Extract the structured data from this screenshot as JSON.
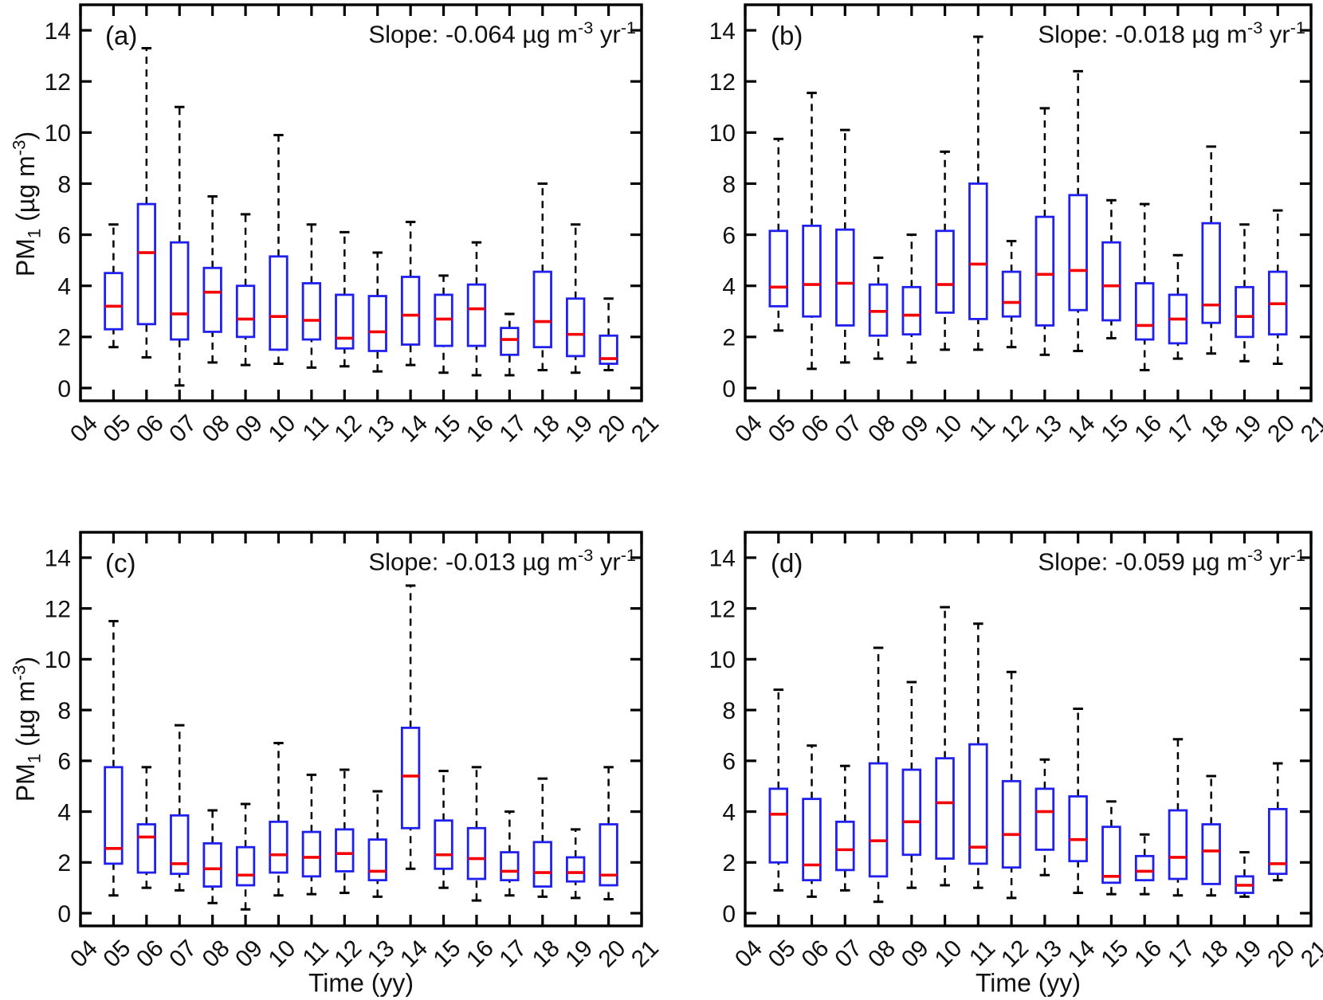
{
  "figure": {
    "background": "#ffffff"
  },
  "colors": {
    "box_edge": "#2020ee",
    "median": "#f50000",
    "whisker": "#000000",
    "axis": "#000000",
    "text": "#111111"
  },
  "axis": {
    "xlabel": "Time (yy)",
    "ylabel_parts": {
      "p0": "PM",
      "p1": "1",
      "p2": " (µg m",
      "p3": "-3",
      "p4": ")"
    },
    "xlim": [
      4,
      21
    ],
    "ylim": [
      -0.5,
      15
    ],
    "yticks": [
      0,
      2,
      4,
      6,
      8,
      10,
      12,
      14
    ],
    "ytick_labels": [
      "0",
      "2",
      "4",
      "6",
      "8",
      "10",
      "12",
      "14"
    ],
    "xticks": [
      4,
      5,
      6,
      7,
      8,
      9,
      10,
      11,
      12,
      13,
      14,
      15,
      16,
      17,
      18,
      19,
      20,
      21
    ],
    "xtick_labels": [
      "04",
      "05",
      "06",
      "07",
      "08",
      "09",
      "10",
      "11",
      "12",
      "13",
      "14",
      "15",
      "16",
      "17",
      "18",
      "19",
      "20",
      "21"
    ],
    "grid": false
  },
  "chart_data": {
    "type": "box",
    "title": "",
    "xlabel": "Time (yy)",
    "ylabel": "PM1 (µg m-3)",
    "ylim": [
      -0.5,
      15
    ],
    "xlim": [
      4,
      21
    ],
    "legend": "none",
    "box_stats_format": [
      "whisker_low",
      "q1",
      "median",
      "q3",
      "whisker_high"
    ],
    "categories": [
      "05",
      "06",
      "07",
      "08",
      "09",
      "10",
      "11",
      "12",
      "13",
      "14",
      "15",
      "16",
      "17",
      "18",
      "19",
      "20"
    ],
    "panels": [
      {
        "id": "a",
        "label": "(a)",
        "slope_value": "-0.064",
        "slope_parts": {
          "p0": "Slope: -0.064 µg m",
          "p1": "-3",
          "p2": " yr",
          "p3": "-1"
        },
        "boxes": [
          [
            1.6,
            2.3,
            3.2,
            4.5,
            6.4
          ],
          [
            1.2,
            2.5,
            5.3,
            7.2,
            13.3
          ],
          [
            0.1,
            1.9,
            2.9,
            5.7,
            11.0
          ],
          [
            1.0,
            2.2,
            3.75,
            4.7,
            7.5
          ],
          [
            0.9,
            2.0,
            2.7,
            4.0,
            6.8
          ],
          [
            0.95,
            1.5,
            2.8,
            5.15,
            9.9
          ],
          [
            0.8,
            1.9,
            2.65,
            4.1,
            6.4
          ],
          [
            0.85,
            1.55,
            1.95,
            3.65,
            6.1
          ],
          [
            0.65,
            1.45,
            2.2,
            3.6,
            5.3
          ],
          [
            0.9,
            1.7,
            2.85,
            4.35,
            6.5
          ],
          [
            0.6,
            1.65,
            2.7,
            3.65,
            4.4
          ],
          [
            0.5,
            1.65,
            3.1,
            4.05,
            5.7
          ],
          [
            0.5,
            1.3,
            1.9,
            2.35,
            2.9
          ],
          [
            0.7,
            1.6,
            2.6,
            4.55,
            8.0
          ],
          [
            0.6,
            1.25,
            2.1,
            3.5,
            6.4
          ],
          [
            0.7,
            0.95,
            1.15,
            2.05,
            3.5
          ]
        ]
      },
      {
        "id": "b",
        "label": "(b)",
        "slope_value": "-0.018",
        "slope_parts": {
          "p0": "Slope: -0.018 µg m",
          "p1": "-3",
          "p2": " yr",
          "p3": "-1"
        },
        "boxes": [
          [
            2.25,
            3.2,
            3.95,
            6.15,
            9.75
          ],
          [
            0.75,
            2.8,
            4.05,
            6.35,
            11.55
          ],
          [
            1.0,
            2.45,
            4.1,
            6.2,
            10.1
          ],
          [
            1.15,
            2.05,
            3.0,
            4.05,
            5.1
          ],
          [
            1.0,
            2.1,
            2.85,
            3.95,
            6.0
          ],
          [
            1.5,
            2.95,
            4.05,
            6.15,
            9.25
          ],
          [
            1.5,
            2.7,
            4.85,
            8.0,
            13.75
          ],
          [
            1.6,
            2.8,
            3.35,
            4.55,
            5.75
          ],
          [
            1.3,
            2.45,
            4.45,
            6.7,
            10.95
          ],
          [
            1.45,
            3.05,
            4.6,
            7.55,
            12.4
          ],
          [
            1.95,
            2.65,
            4.0,
            5.7,
            7.35
          ],
          [
            0.7,
            1.9,
            2.45,
            4.1,
            7.2
          ],
          [
            1.15,
            1.75,
            2.7,
            3.65,
            5.2
          ],
          [
            1.35,
            2.55,
            3.25,
            6.45,
            9.45
          ],
          [
            1.05,
            2.0,
            2.8,
            3.95,
            6.4
          ],
          [
            0.95,
            2.1,
            3.3,
            4.55,
            6.95
          ]
        ]
      },
      {
        "id": "c",
        "label": "(c)",
        "slope_value": "-0.013",
        "slope_parts": {
          "p0": "Slope: -0.013 µg m",
          "p1": "-3",
          "p2": " yr",
          "p3": "-1"
        },
        "boxes": [
          [
            0.7,
            1.95,
            2.55,
            5.75,
            11.5
          ],
          [
            1.0,
            1.6,
            3.0,
            3.5,
            5.75
          ],
          [
            0.9,
            1.55,
            1.95,
            3.85,
            7.4
          ],
          [
            0.4,
            1.05,
            1.75,
            2.75,
            4.05
          ],
          [
            0.15,
            1.1,
            1.5,
            2.6,
            4.3
          ],
          [
            0.7,
            1.6,
            2.3,
            3.6,
            6.7
          ],
          [
            0.75,
            1.45,
            2.2,
            3.2,
            5.45
          ],
          [
            0.8,
            1.65,
            2.35,
            3.3,
            5.65
          ],
          [
            0.65,
            1.3,
            1.65,
            2.9,
            4.8
          ],
          [
            1.75,
            3.35,
            5.4,
            7.3,
            12.9
          ],
          [
            1.0,
            1.75,
            2.3,
            3.65,
            5.6
          ],
          [
            0.5,
            1.35,
            2.15,
            3.35,
            5.75
          ],
          [
            0.7,
            1.3,
            1.65,
            2.4,
            4.0
          ],
          [
            0.65,
            1.05,
            1.6,
            2.8,
            5.3
          ],
          [
            0.6,
            1.25,
            1.6,
            2.2,
            3.3
          ],
          [
            0.55,
            1.1,
            1.5,
            3.5,
            5.75
          ]
        ]
      },
      {
        "id": "d",
        "label": "(d)",
        "slope_value": "-0.059",
        "slope_parts": {
          "p0": "Slope: -0.059 µg m",
          "p1": "-3",
          "p2": " yr",
          "p3": "-1"
        },
        "boxes": [
          [
            0.9,
            2.0,
            3.9,
            4.9,
            8.8
          ],
          [
            0.65,
            1.3,
            1.9,
            4.5,
            6.6
          ],
          [
            0.9,
            1.7,
            2.5,
            3.6,
            5.8
          ],
          [
            0.45,
            1.45,
            2.85,
            5.9,
            10.45
          ],
          [
            1.0,
            2.3,
            3.6,
            5.65,
            9.1
          ],
          [
            1.1,
            2.15,
            4.35,
            6.1,
            12.05
          ],
          [
            1.0,
            1.95,
            2.6,
            6.65,
            11.4
          ],
          [
            0.6,
            1.8,
            3.1,
            5.2,
            9.5
          ],
          [
            1.5,
            2.5,
            4.0,
            4.9,
            6.05
          ],
          [
            0.8,
            2.05,
            2.9,
            4.6,
            8.05
          ],
          [
            0.75,
            1.2,
            1.45,
            3.4,
            4.4
          ],
          [
            0.75,
            1.3,
            1.65,
            2.25,
            3.1
          ],
          [
            0.7,
            1.35,
            2.2,
            4.05,
            6.85
          ],
          [
            0.7,
            1.15,
            2.45,
            3.5,
            5.4
          ],
          [
            0.65,
            0.8,
            1.1,
            1.45,
            2.4
          ],
          [
            1.3,
            1.55,
            1.95,
            4.1,
            5.9
          ]
        ]
      }
    ]
  }
}
